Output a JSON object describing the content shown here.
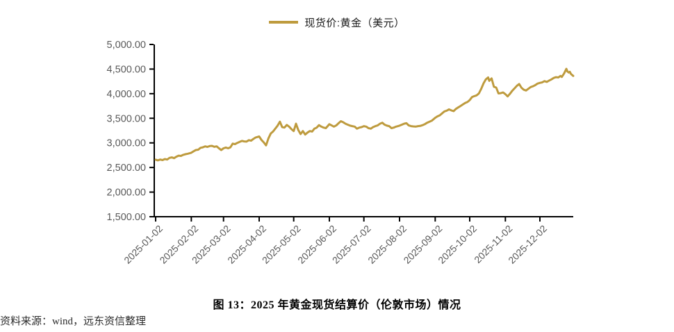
{
  "legend": {
    "label": "现货价:黄金（美元）",
    "swatch_color": "#BE9B3E"
  },
  "caption": "图 13：2025 年黄金现货结算价（伦敦市场）情况",
  "source_note": "资料来源：wind，远东资信整理",
  "colors": {
    "line": "#BE9B3E",
    "axis": "#000000",
    "tick_label": "#595959"
  },
  "chart_data": {
    "type": "line",
    "title": "图 13：2025 年黄金现货结算价（伦敦市场）情况",
    "series_name": "现货价:黄金（美元）",
    "xlabel": "",
    "ylabel": "",
    "ylim": [
      1500,
      5000
    ],
    "y_tick_step": 500,
    "grid": false,
    "legend_position": "top-center",
    "y_tick_labels": [
      "5,000.00",
      "4,500.00",
      "4,000.00",
      "3,500.00",
      "3,000.00",
      "2,500.00",
      "2,000.00",
      "1,500.00"
    ],
    "y_tick_values": [
      5000,
      4500,
      4000,
      3500,
      3000,
      2500,
      2000,
      1500
    ],
    "x_tick_labels": [
      "2025-01-02",
      "2025-02-02",
      "2025-03-02",
      "2025-04-02",
      "2025-05-02",
      "2025-06-02",
      "2025-07-02",
      "2025-08-02",
      "2025-09-02",
      "2025-10-02",
      "2025-11-02",
      "2025-12-02"
    ],
    "x_tick_day_offsets": [
      0,
      31,
      59,
      90,
      120,
      151,
      181,
      212,
      243,
      273,
      304,
      334
    ],
    "x_day_range": [
      0,
      363
    ],
    "points": [
      [
        0,
        2658
      ],
      [
        2,
        2645
      ],
      [
        4,
        2662
      ],
      [
        6,
        2650
      ],
      [
        8,
        2672
      ],
      [
        10,
        2662
      ],
      [
        12,
        2695
      ],
      [
        14,
        2705
      ],
      [
        16,
        2690
      ],
      [
        18,
        2720
      ],
      [
        20,
        2740
      ],
      [
        22,
        2735
      ],
      [
        24,
        2758
      ],
      [
        26,
        2770
      ],
      [
        28,
        2780
      ],
      [
        31,
        2800
      ],
      [
        33,
        2830
      ],
      [
        35,
        2855
      ],
      [
        37,
        2862
      ],
      [
        39,
        2900
      ],
      [
        41,
        2910
      ],
      [
        43,
        2930
      ],
      [
        45,
        2918
      ],
      [
        47,
        2935
      ],
      [
        49,
        2940
      ],
      [
        51,
        2920
      ],
      [
        53,
        2930
      ],
      [
        55,
        2890
      ],
      [
        57,
        2855
      ],
      [
        59,
        2890
      ],
      [
        61,
        2905
      ],
      [
        63,
        2890
      ],
      [
        65,
        2910
      ],
      [
        67,
        2985
      ],
      [
        69,
        2975
      ],
      [
        71,
        3000
      ],
      [
        73,
        3020
      ],
      [
        75,
        3040
      ],
      [
        77,
        3030
      ],
      [
        79,
        3025
      ],
      [
        81,
        3055
      ],
      [
        83,
        3045
      ],
      [
        85,
        3080
      ],
      [
        87,
        3110
      ],
      [
        90,
        3130
      ],
      [
        92,
        3060
      ],
      [
        94,
        3010
      ],
      [
        96,
        2950
      ],
      [
        98,
        3090
      ],
      [
        100,
        3190
      ],
      [
        102,
        3230
      ],
      [
        104,
        3290
      ],
      [
        106,
        3350
      ],
      [
        108,
        3430
      ],
      [
        110,
        3320
      ],
      [
        112,
        3310
      ],
      [
        114,
        3365
      ],
      [
        116,
        3330
      ],
      [
        118,
        3280
      ],
      [
        120,
        3240
      ],
      [
        122,
        3390
      ],
      [
        124,
        3260
      ],
      [
        126,
        3180
      ],
      [
        128,
        3240
      ],
      [
        130,
        3170
      ],
      [
        132,
        3210
      ],
      [
        134,
        3240
      ],
      [
        136,
        3230
      ],
      [
        138,
        3290
      ],
      [
        140,
        3310
      ],
      [
        142,
        3360
      ],
      [
        144,
        3330
      ],
      [
        146,
        3310
      ],
      [
        148,
        3300
      ],
      [
        151,
        3380
      ],
      [
        153,
        3355
      ],
      [
        155,
        3330
      ],
      [
        157,
        3355
      ],
      [
        159,
        3400
      ],
      [
        161,
        3440
      ],
      [
        163,
        3420
      ],
      [
        165,
        3390
      ],
      [
        167,
        3370
      ],
      [
        169,
        3350
      ],
      [
        171,
        3340
      ],
      [
        173,
        3330
      ],
      [
        175,
        3290
      ],
      [
        177,
        3310
      ],
      [
        179,
        3320
      ],
      [
        181,
        3340
      ],
      [
        183,
        3330
      ],
      [
        185,
        3300
      ],
      [
        187,
        3290
      ],
      [
        189,
        3320
      ],
      [
        191,
        3340
      ],
      [
        193,
        3355
      ],
      [
        195,
        3390
      ],
      [
        197,
        3410
      ],
      [
        199,
        3370
      ],
      [
        201,
        3350
      ],
      [
        203,
        3340
      ],
      [
        205,
        3300
      ],
      [
        207,
        3310
      ],
      [
        209,
        3330
      ],
      [
        212,
        3350
      ],
      [
        214,
        3370
      ],
      [
        216,
        3390
      ],
      [
        218,
        3400
      ],
      [
        220,
        3355
      ],
      [
        222,
        3340
      ],
      [
        224,
        3335
      ],
      [
        226,
        3330
      ],
      [
        228,
        3340
      ],
      [
        230,
        3345
      ],
      [
        232,
        3360
      ],
      [
        234,
        3380
      ],
      [
        236,
        3410
      ],
      [
        238,
        3430
      ],
      [
        240,
        3450
      ],
      [
        243,
        3510
      ],
      [
        245,
        3540
      ],
      [
        247,
        3560
      ],
      [
        249,
        3600
      ],
      [
        251,
        3640
      ],
      [
        253,
        3655
      ],
      [
        255,
        3680
      ],
      [
        257,
        3660
      ],
      [
        259,
        3645
      ],
      [
        261,
        3690
      ],
      [
        263,
        3720
      ],
      [
        265,
        3750
      ],
      [
        267,
        3780
      ],
      [
        269,
        3810
      ],
      [
        271,
        3830
      ],
      [
        273,
        3870
      ],
      [
        275,
        3930
      ],
      [
        277,
        3950
      ],
      [
        279,
        3965
      ],
      [
        281,
        4005
      ],
      [
        283,
        4100
      ],
      [
        285,
        4210
      ],
      [
        287,
        4290
      ],
      [
        289,
        4330
      ],
      [
        290,
        4260
      ],
      [
        292,
        4310
      ],
      [
        294,
        4140
      ],
      [
        296,
        4125
      ],
      [
        298,
        4005
      ],
      [
        300,
        4010
      ],
      [
        302,
        4025
      ],
      [
        304,
        3990
      ],
      [
        306,
        3945
      ],
      [
        308,
        4000
      ],
      [
        310,
        4060
      ],
      [
        312,
        4110
      ],
      [
        314,
        4160
      ],
      [
        316,
        4195
      ],
      [
        318,
        4120
      ],
      [
        320,
        4080
      ],
      [
        322,
        4065
      ],
      [
        324,
        4100
      ],
      [
        326,
        4135
      ],
      [
        328,
        4150
      ],
      [
        330,
        4175
      ],
      [
        332,
        4205
      ],
      [
        334,
        4220
      ],
      [
        336,
        4230
      ],
      [
        338,
        4255
      ],
      [
        340,
        4240
      ],
      [
        342,
        4265
      ],
      [
        344,
        4290
      ],
      [
        346,
        4320
      ],
      [
        348,
        4335
      ],
      [
        350,
        4330
      ],
      [
        352,
        4360
      ],
      [
        353,
        4340
      ],
      [
        355,
        4410
      ],
      [
        357,
        4505
      ],
      [
        358,
        4450
      ],
      [
        359,
        4430
      ],
      [
        360,
        4445
      ],
      [
        361,
        4400
      ],
      [
        363,
        4360
      ]
    ]
  }
}
